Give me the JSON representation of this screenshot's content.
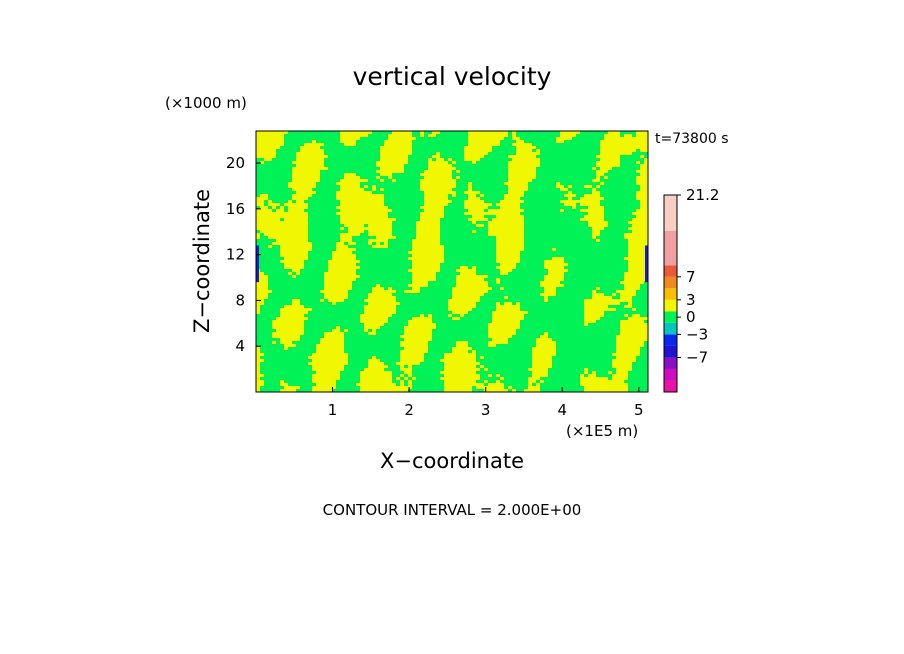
{
  "chart_data": {
    "type": "heatmap",
    "title": "vertical velocity",
    "xlabel": "X−coordinate",
    "ylabel": "Z−coordinate",
    "x_unit": "(×1E5 m)",
    "y_unit": "(×1000 m)",
    "time_label": "t=73800 s",
    "contour_interval_label": "CONTOUR INTERVAL = 2.000E+00",
    "xlim": [
      0,
      5.12
    ],
    "ylim": [
      0,
      22.8
    ],
    "x_ticks": [
      1,
      2,
      3,
      4,
      5
    ],
    "x_tick_labels": [
      "1",
      "2",
      "3",
      "4",
      "5"
    ],
    "y_ticks": [
      4,
      8,
      12,
      16,
      20
    ],
    "y_tick_labels": [
      "4",
      "8",
      "12",
      "16",
      "20"
    ],
    "field_colors": {
      "positive_small": "#f0f700",
      "near_zero": "#00f257",
      "negative": "#1a1adc"
    },
    "colorbar": {
      "levels": [
        -11,
        -9,
        -7,
        -5,
        -3,
        -1,
        1,
        3,
        5,
        7,
        9,
        15,
        21.2
      ],
      "colors": [
        "#e812a8",
        "#cf0cc2",
        "#8a10c4",
        "#1f14d2",
        "#0a28f0",
        "#00c6c0",
        "#00f257",
        "#f0f700",
        "#f4c000",
        "#f08a20",
        "#e85a3a",
        "#f0a0a0",
        "#f9cfc5",
        "#fff0ea"
      ],
      "tick_values": [
        21.2,
        7,
        3,
        0,
        -3,
        -7
      ],
      "tick_labels": [
        "21.2",
        "7",
        "3",
        "0",
        "−3",
        "−7"
      ]
    }
  }
}
